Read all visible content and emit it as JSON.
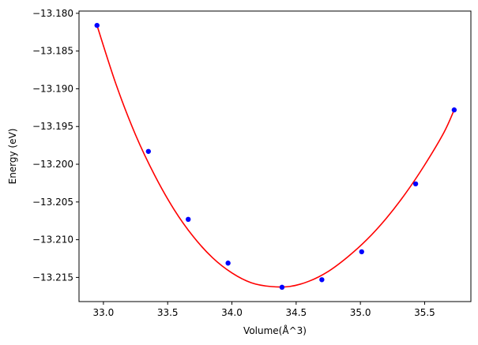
{
  "chart_data": {
    "type": "scatter",
    "xlabel": "Volume(Å^3)",
    "ylabel": "Energy (eV)",
    "xlim": [
      32.81,
      35.86
    ],
    "ylim": [
      -13.2182,
      -13.1797
    ],
    "x_ticks": [
      33.0,
      33.5,
      34.0,
      34.5,
      35.0,
      35.5
    ],
    "x_tick_labels": [
      "33.0",
      "33.5",
      "34.0",
      "34.5",
      "35.0",
      "35.5"
    ],
    "y_ticks": [
      -13.18,
      -13.185,
      -13.19,
      -13.195,
      -13.2,
      -13.205,
      -13.21,
      -13.215
    ],
    "y_tick_labels": [
      "−13.180",
      "−13.185",
      "−13.190",
      "−13.195",
      "−13.200",
      "−13.205",
      "−13.210",
      "−13.215"
    ],
    "grid": false,
    "series": [
      {
        "kind": "points",
        "color": "#0000ff",
        "x": [
          32.95,
          33.35,
          33.66,
          33.97,
          34.39,
          34.7,
          35.01,
          35.43,
          35.73
        ],
        "y": [
          -13.1816,
          -13.1983,
          -13.2073,
          -13.2131,
          -13.2163,
          -13.2153,
          -13.2116,
          -13.2026,
          -13.1928
        ]
      },
      {
        "kind": "fit-curve",
        "color": "#ff0000",
        "x": [
          32.95,
          33.1,
          33.25,
          33.4,
          33.55,
          33.7,
          33.85,
          34.0,
          34.15,
          34.3,
          34.45,
          34.6,
          34.75,
          34.9,
          35.05,
          35.2,
          35.35,
          35.5,
          35.65,
          35.73
        ],
        "y": [
          -13.1816,
          -13.1895,
          -13.1961,
          -13.2015,
          -13.206,
          -13.2096,
          -13.2124,
          -13.2144,
          -13.2157,
          -13.2162,
          -13.2162,
          -13.2155,
          -13.2142,
          -13.2123,
          -13.21,
          -13.2072,
          -13.2039,
          -13.2001,
          -13.1958,
          -13.1928
        ]
      }
    ]
  }
}
